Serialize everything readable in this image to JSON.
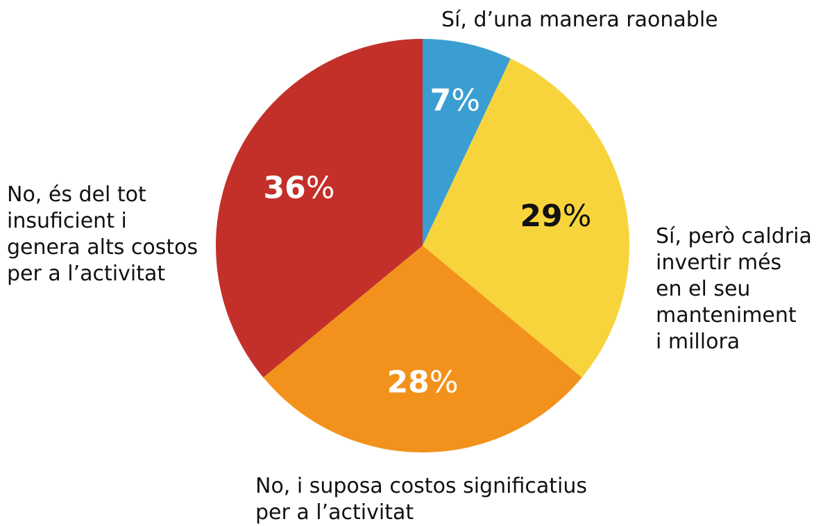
{
  "chart_data": {
    "type": "pie",
    "categories": [
      "Sí, d’una manera raonable",
      "Sí, però caldria\ninvertir més\nen el seu\nmanteniment\ni millora",
      "No, i suposa costos significatius\nper a l’activitat",
      "No, és del tot\ninsuficient i\ngenera alts costos\nper a l’activitat"
    ],
    "values": [
      7,
      29,
      28,
      36
    ],
    "value_labels": [
      "7%",
      "29%",
      "28%",
      "36%"
    ],
    "colors": [
      "#3a9ed2",
      "#f8d43c",
      "#f2921c",
      "#c3302a"
    ],
    "label_colors": [
      "#ffffff",
      "#111111",
      "#ffffff",
      "#ffffff"
    ]
  }
}
